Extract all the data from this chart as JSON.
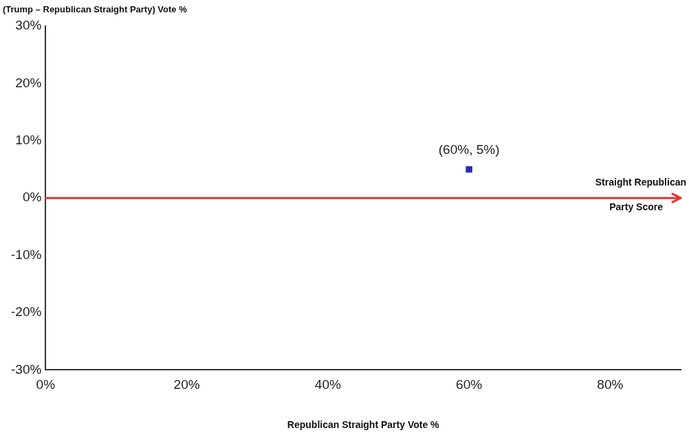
{
  "chart_data": {
    "type": "scatter",
    "xlabel": "Republican Straight Party Vote %",
    "ylabel": "(Trump – Republican Straight Party) Vote %",
    "xlim": [
      0,
      90
    ],
    "xticks": [
      {
        "value": 0,
        "label": "0%"
      },
      {
        "value": 20,
        "label": "20%"
      },
      {
        "value": 40,
        "label": "40%"
      },
      {
        "value": 60,
        "label": "60%"
      },
      {
        "value": 80,
        "label": "80%"
      }
    ],
    "ylim": [
      -30,
      30
    ],
    "yticks": [
      {
        "value": -30,
        "label": "-30%"
      },
      {
        "value": -20,
        "label": "-20%"
      },
      {
        "value": -10,
        "label": "-10%"
      },
      {
        "value": 0,
        "label": "0%"
      },
      {
        "value": 10,
        "label": "10%"
      },
      {
        "value": 20,
        "label": "20%"
      },
      {
        "value": 30,
        "label": "30%"
      }
    ],
    "series": [
      {
        "color": "#2b2bb0",
        "x": [
          60
        ],
        "values": [
          5
        ]
      }
    ],
    "marker": "square",
    "ref_lines": [
      {
        "axis": "y",
        "value": 0,
        "label": "Straight Republican Party Score",
        "color": "#e8322a"
      }
    ],
    "annotations": [
      {
        "text": "(60%, 5%)",
        "x": 60,
        "y": 5
      }
    ],
    "grid": false,
    "legend": false
  }
}
